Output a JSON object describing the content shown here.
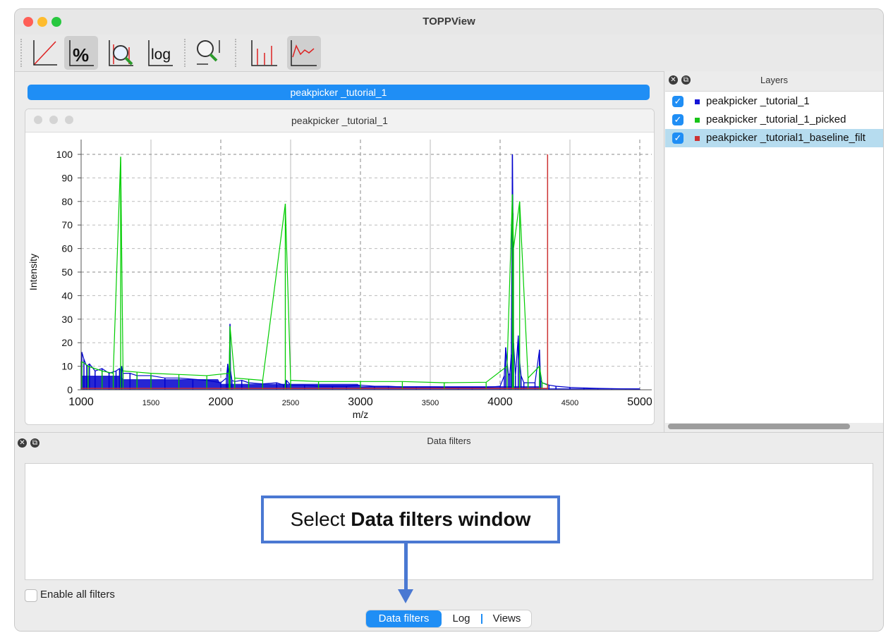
{
  "window": {
    "title": "TOPPView"
  },
  "toolbar": {
    "icons": [
      "linear-intensity",
      "percentage-intensity",
      "snap-to-max",
      "log-intensity",
      "zoom-fit",
      "stick-peaks",
      "connected-lines"
    ]
  },
  "canvas_tab": {
    "label": "peakpicker _tutorial_1"
  },
  "subwindow": {
    "title": "peakpicker _tutorial_1"
  },
  "chart_data": {
    "type": "line",
    "xlabel": "m/z",
    "ylabel": "Intensity",
    "xlim": [
      1000,
      5000
    ],
    "ylim": [
      0,
      100
    ],
    "x_ticks": [
      "1000",
      "1500",
      "2000",
      "2500",
      "3000",
      "3500",
      "4000",
      "4500",
      "5000"
    ],
    "y_ticks": [
      "0",
      "10",
      "20",
      "30",
      "40",
      "50",
      "60",
      "70",
      "80",
      "90",
      "100"
    ],
    "grid": true,
    "series": [
      {
        "name": "peakpicker _tutorial_1",
        "color": "#0000cc",
        "style": "profile",
        "x": [
          1000,
          1005,
          1020,
          1040,
          1060,
          1100,
          1150,
          1200,
          1250,
          1275,
          1283,
          1290,
          1300,
          1350,
          1400,
          1500,
          1600,
          1700,
          1800,
          1900,
          2000,
          2040,
          2050,
          2060,
          2066,
          2070,
          2080,
          2100,
          2150,
          2200,
          2300,
          2400,
          2450,
          2462,
          2470,
          2500,
          2600,
          2700,
          2800,
          2900,
          3000,
          3100,
          3200,
          3300,
          3400,
          3500,
          3600,
          3700,
          3800,
          3900,
          4000,
          4030,
          4040,
          4060,
          4070,
          4080,
          4088,
          4092,
          4096,
          4110,
          4130,
          4140,
          4150,
          4170,
          4200,
          4250,
          4282,
          4290,
          4300,
          4350,
          4400,
          4500,
          4600,
          4700,
          4800,
          4900,
          5000
        ],
        "y": [
          12,
          16,
          13,
          10,
          11,
          8,
          9,
          7,
          8,
          9,
          8,
          10,
          7,
          7,
          6,
          6,
          5,
          5,
          4.5,
          4,
          3,
          5,
          11,
          6,
          28,
          8,
          4,
          3.5,
          4,
          3,
          2.5,
          3,
          2,
          2.5,
          4,
          2,
          2,
          1.5,
          1.5,
          1.5,
          2,
          1.5,
          1.5,
          1.2,
          1.2,
          1.2,
          1,
          1,
          1,
          1,
          1.5,
          6,
          18,
          6,
          7,
          15,
          100,
          75,
          20,
          6,
          23,
          12,
          6,
          3,
          3,
          3,
          17,
          4,
          3,
          2,
          1.5,
          1,
          0.8,
          0.6,
          0.5,
          0.4,
          0.3
        ]
      },
      {
        "name": "peakpicker _tutorial_1_picked",
        "color": "#00cc00",
        "style": "sticks",
        "x": [
          1005,
          1050,
          1150,
          1230,
          1283,
          1300,
          1400,
          1500,
          1700,
          1900,
          2060,
          2066,
          2100,
          2200,
          2300,
          2462,
          2500,
          2700,
          3000,
          3300,
          3600,
          3900,
          4050,
          4088,
          4096,
          4140,
          4200,
          4282,
          4300,
          4340
        ],
        "y": [
          12,
          10,
          8,
          7,
          99,
          8,
          7.5,
          7,
          6.5,
          6,
          7,
          27,
          5,
          4.5,
          4,
          79,
          4,
          3.5,
          3.5,
          3.5,
          3,
          3.2,
          10,
          83,
          60,
          80,
          5,
          10,
          3,
          2
        ]
      },
      {
        "name": "peakpicker _tutorial1_baseline_filt",
        "color": "#cc3333",
        "style": "baseline",
        "x": [
          1000,
          4340
        ],
        "y": [
          0,
          0
        ],
        "marker_x": 4340,
        "marker_y": 100
      }
    ]
  },
  "layers_panel": {
    "title": "Layers",
    "items": [
      {
        "label": "peakpicker _tutorial_1",
        "checked": true,
        "color": "#1515d6"
      },
      {
        "label": "peakpicker _tutorial_1_picked",
        "checked": true,
        "color": "#18c418"
      },
      {
        "label": "peakpicker _tutorial1_baseline_filt",
        "checked": true,
        "color": "#cc3333",
        "selected": true
      }
    ]
  },
  "filters_panel": {
    "title": "Data filters",
    "enable_all_label": "Enable all filters",
    "enable_all_checked": false
  },
  "bottom_tabs": [
    {
      "label": "Data filters",
      "active": true
    },
    {
      "label": "Log",
      "active": false
    },
    {
      "label": "Views",
      "active": false
    }
  ],
  "annotation": {
    "prefix": "Select ",
    "bold": "Data filters window"
  }
}
